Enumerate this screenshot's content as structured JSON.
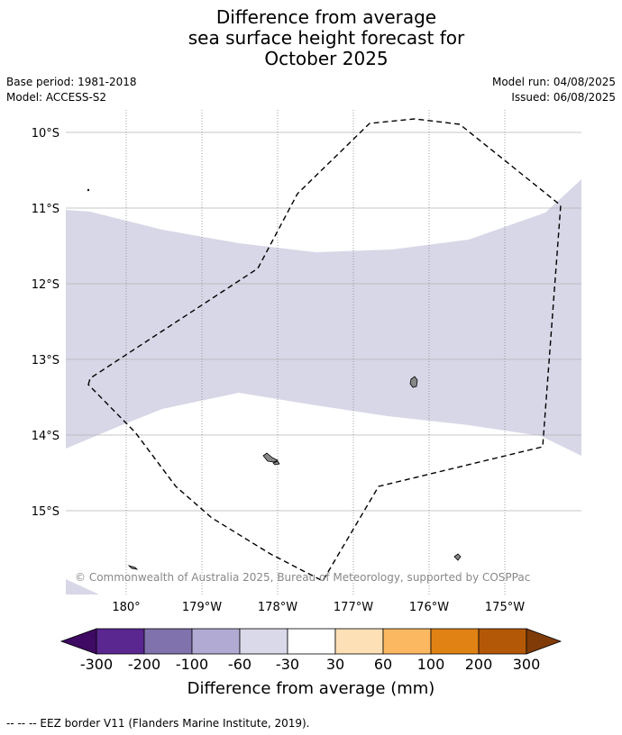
{
  "title": {
    "line1": "Difference from average",
    "line2": "sea surface height forecast for",
    "line3": "October 2025"
  },
  "meta": {
    "base_period": "Base period: 1981-2018",
    "model": "Model: ACCESS-S2",
    "model_run": "Model run: 04/08/2025",
    "issued": "Issued: 06/08/2025"
  },
  "map": {
    "lat_labels": [
      "10°S",
      "11°S",
      "12°S",
      "13°S",
      "14°S",
      "15°S"
    ],
    "lon_labels": [
      "180°",
      "179°W",
      "178°W",
      "177°W",
      "176°W",
      "175°W"
    ],
    "copyright": "© Commonwealth of Australia 2025, Bureau of Meteorology, supported by COSPPac",
    "band_color": "#d7d7e8",
    "eez_line": "dashed"
  },
  "colorbar": {
    "title": "Difference from average (mm)",
    "ticks": [
      "-300",
      "-200",
      "-100",
      "-60",
      "-30",
      "30",
      "60",
      "100",
      "200",
      "300"
    ],
    "colors": [
      "#3f0a63",
      "#5a2690",
      "#8072ac",
      "#b1aad2",
      "#d9d9ea",
      "#ffffff",
      "#fee0b6",
      "#fbb861",
      "#e08214",
      "#b35806",
      "#7f3b08"
    ]
  },
  "footnote": "--  --  -- EEZ border V11 (Flanders Marine Institute, 2019)."
}
